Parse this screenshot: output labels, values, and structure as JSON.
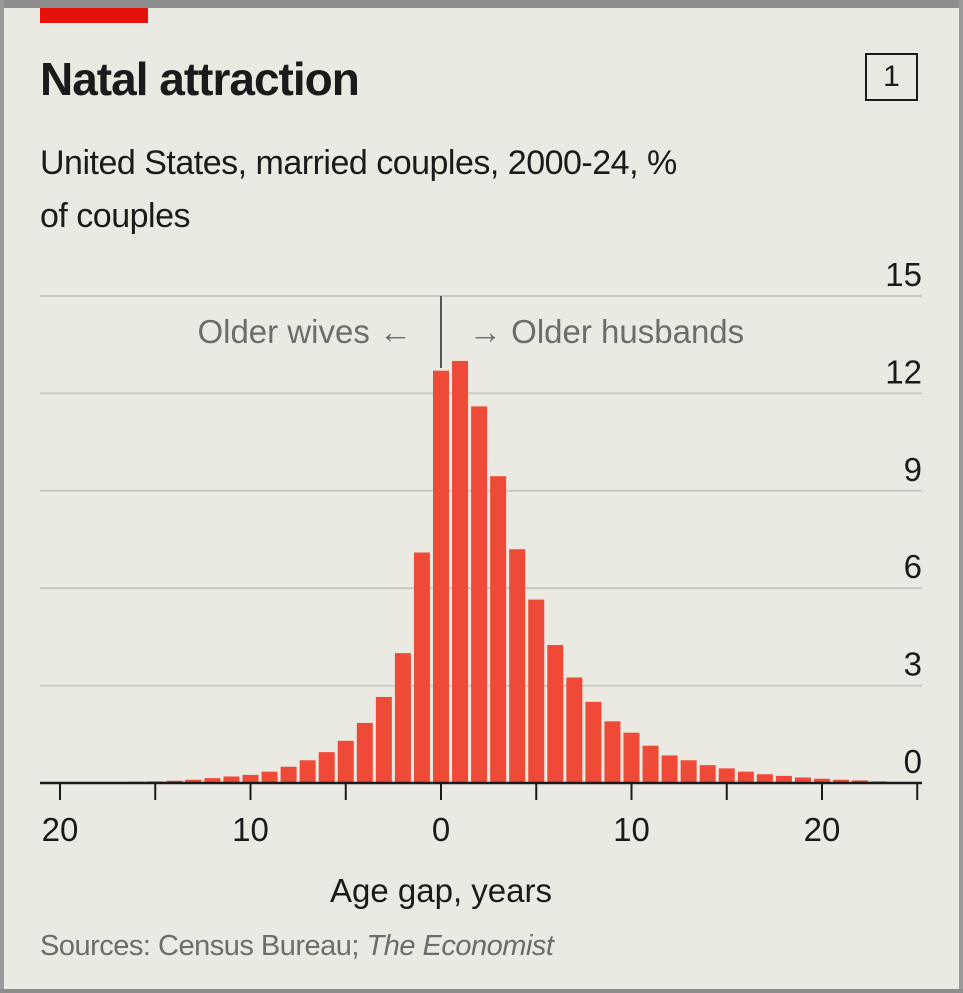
{
  "chart_number": "1",
  "title": "Natal attraction",
  "subtitle": "United States, married couples, 2000-24, % of couples",
  "source_prefix": "Sources: Census Bureau;",
  "source_publication": "The Economist",
  "colors": {
    "accent": "#e3120b",
    "bar": "#ef4a38",
    "background": "#ebeae2",
    "gridline": "#c8c8c0",
    "text": "#1a1a1a",
    "muted": "#6c6c6c"
  },
  "chart_data": {
    "type": "bar",
    "xlabel": "Age gap, years",
    "ylabel": "",
    "xlim": [
      -21,
      25
    ],
    "ylim": [
      0,
      15
    ],
    "y_ticks": [
      0,
      3,
      6,
      9,
      12,
      15
    ],
    "y_axis_position": "right",
    "grid": true,
    "x_ticks": [
      {
        "value": -20,
        "label": "20"
      },
      {
        "value": -10,
        "label": "10"
      },
      {
        "value": 0,
        "label": "0"
      },
      {
        "value": 10,
        "label": "10"
      },
      {
        "value": 20,
        "label": "20"
      }
    ],
    "annotations": [
      {
        "text": "Older wives ←",
        "side": "left"
      },
      {
        "text": "→ Older husbands",
        "side": "right"
      }
    ],
    "x": [
      -20,
      -19,
      -18,
      -17,
      -16,
      -15,
      -14,
      -13,
      -12,
      -11,
      -10,
      -9,
      -8,
      -7,
      -6,
      -5,
      -4,
      -3,
      -2,
      -1,
      0,
      1,
      2,
      3,
      4,
      5,
      6,
      7,
      8,
      9,
      10,
      11,
      12,
      13,
      14,
      15,
      16,
      17,
      18,
      19,
      20,
      21,
      22,
      23,
      24
    ],
    "values": [
      0.02,
      0.02,
      0.02,
      0.03,
      0.04,
      0.05,
      0.07,
      0.1,
      0.15,
      0.2,
      0.25,
      0.35,
      0.5,
      0.7,
      0.95,
      1.3,
      1.85,
      2.65,
      4.0,
      7.1,
      12.7,
      13.0,
      11.6,
      9.45,
      7.2,
      5.65,
      4.25,
      3.25,
      2.5,
      1.9,
      1.55,
      1.15,
      0.85,
      0.7,
      0.55,
      0.45,
      0.35,
      0.27,
      0.22,
      0.17,
      0.13,
      0.1,
      0.08,
      0.05,
      0.03
    ]
  }
}
